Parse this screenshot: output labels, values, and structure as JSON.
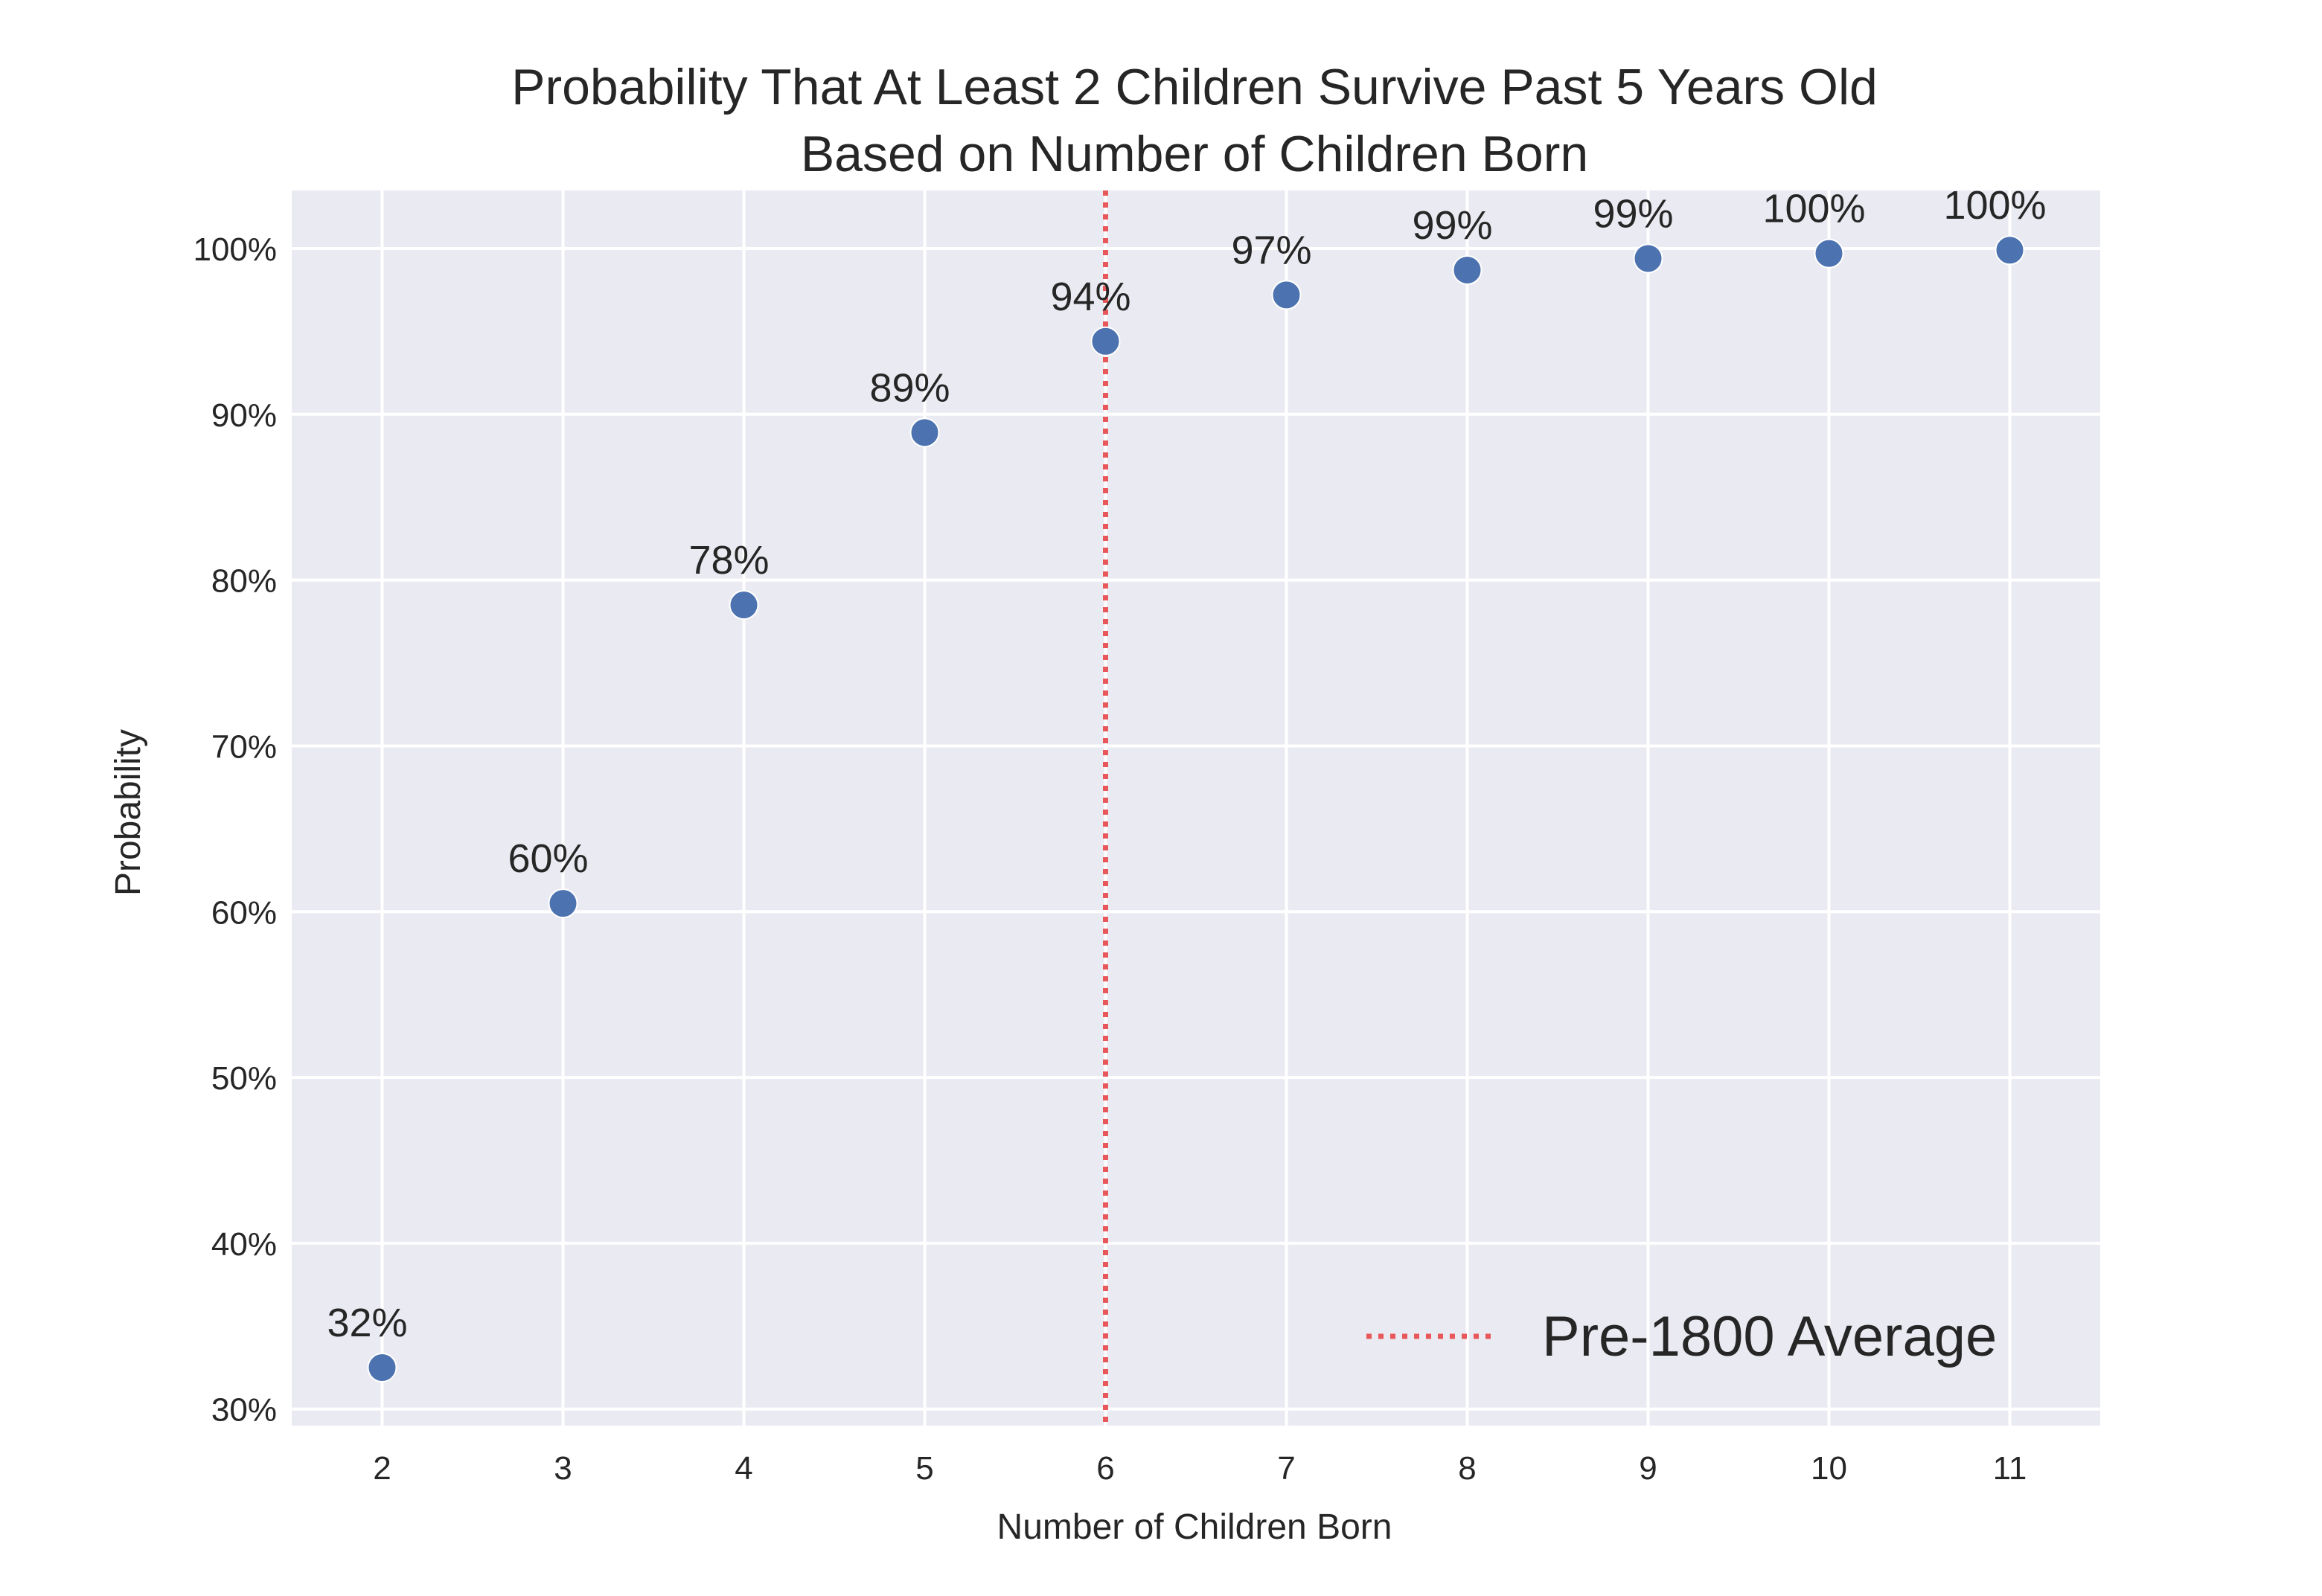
{
  "chart_data": {
    "type": "scatter",
    "title": "Probability That At Least 2 Children Survive Past 5 Years Old\nBased on Number of Children Born",
    "xlabel": "Number of Children Born",
    "ylabel": "Probability",
    "x": [
      2,
      3,
      4,
      5,
      6,
      7,
      8,
      9,
      10,
      11
    ],
    "y": [
      0.325,
      0.605,
      0.785,
      0.889,
      0.944,
      0.972,
      0.987,
      0.994,
      0.997,
      0.999
    ],
    "data_labels": [
      "32%",
      "60%",
      "78%",
      "89%",
      "94%",
      "97%",
      "99%",
      "99%",
      "100%",
      "100%"
    ],
    "xlim": [
      1.5,
      11.5
    ],
    "ylim": [
      0.29,
      1.035
    ],
    "xticks": [
      2,
      3,
      4,
      5,
      6,
      7,
      8,
      9,
      10,
      11
    ],
    "yticks": [
      0.3,
      0.4,
      0.5,
      0.6,
      0.7,
      0.8,
      0.9,
      1.0
    ],
    "ytick_labels": [
      "30%",
      "40%",
      "50%",
      "60%",
      "70%",
      "80%",
      "90%",
      "100%"
    ],
    "grid": true,
    "point_color": "#4c72b0",
    "reference_line": {
      "x": 6,
      "label": "Pre-1800 Average",
      "color": "#e8585a",
      "style": "dotted"
    },
    "legend_position": "bottom-right",
    "background_color": "#eaeaf2",
    "grid_color": "#ffffff"
  }
}
